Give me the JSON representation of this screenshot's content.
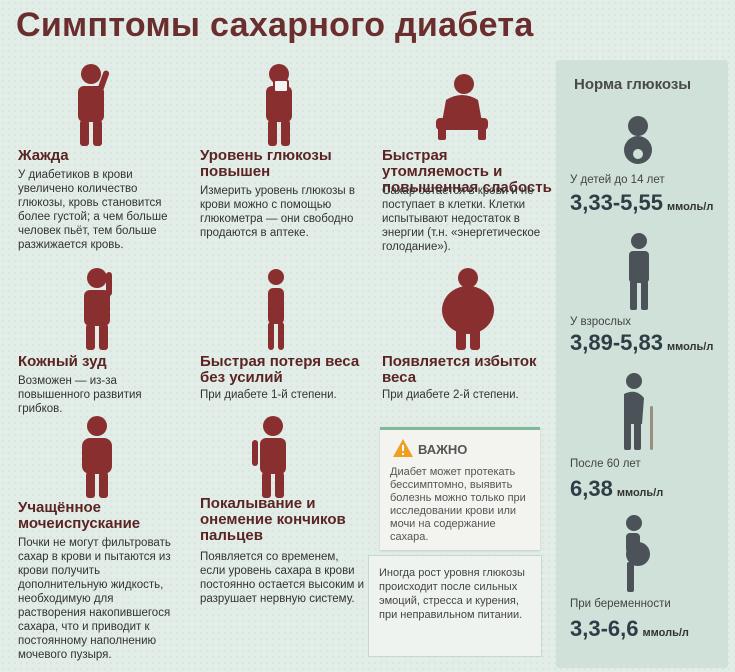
{
  "title": "Симптомы сахарного диабета",
  "symptoms": [
    {
      "title": "Жажда",
      "text": "У диабетиков в крови увеличено количество глюкозы, кровь становится более густой; а чем больше человек пьёт, тем больше разжижается кровь.",
      "icon": "person-drinking-icon"
    },
    {
      "title": "Уровень глюкозы повышен",
      "text": "Измерить уровень глюкозы в крови можно с помощью глюкометра — они свободно продаются в аптеке.",
      "icon": "person-glucometer-icon"
    },
    {
      "title": "Быстрая утомляемость и повышенная слабость",
      "text": "Сахар остается в крови и не поступает в клетки. Клетки испытывают недостаток в энергии (т.н. «энергетическое голодание»).",
      "icon": "tired-person-icon"
    },
    {
      "title": "Кожный зуд",
      "text": "Возможен — из-за повышенного развития грибков.",
      "icon": "person-scratching-icon"
    },
    {
      "title": "Быстрая потеря веса без усилий",
      "text": "При диабете 1-й степени.",
      "icon": "thin-person-icon"
    },
    {
      "title": "Появляется избыток веса",
      "text": "При диабете 2-й степени.",
      "icon": "overweight-person-icon"
    },
    {
      "title": "Учащённое мочеиспускание",
      "text": "Почки не могут фильтровать сахар в крови и пытаются из крови получить дополнительную жидкость, необходимую для растворения накопившегося сахара, что и приводит к постоянному наполнению мочевого пузыря.",
      "icon": "person-urination-icon"
    },
    {
      "title": "Покалывание и онемение кончиков пальцев",
      "text": "Появляется со временем, если уровень сахара в крови постоянно остается высоким и разрушает нервную систему.",
      "icon": "person-fingers-icon"
    }
  ],
  "warning": {
    "title": "ВАЖНО",
    "text": "Диабет может протекать бессимптомно, выявить болезнь можно только при исследовании крови или мочи на содержание сахара.",
    "icon": "warning-icon",
    "accent": "#f0a020"
  },
  "note": {
    "text": "Иногда рост уровня глюкозы происходит после сильных эмоций, стресса и курения, при неправильном питании."
  },
  "norms": {
    "title": "Норма глюкозы",
    "items": [
      {
        "label": "У детей до 14 лет",
        "value": "3,33-5,55",
        "unit": "ммоль/л",
        "icon": "baby-icon"
      },
      {
        "label": "У взрослых",
        "value": "3,89-5,83",
        "unit": "ммоль/л",
        "icon": "adult-icon"
      },
      {
        "label": "После 60 лет",
        "value": "6,38",
        "unit": "ммоль/л",
        "icon": "elderly-icon"
      },
      {
        "label": "При беременности",
        "value": "3,3-6,6",
        "unit": "ммоль/л",
        "icon": "pregnant-woman-icon"
      }
    ]
  },
  "colors": {
    "figure": "#8a2f2f",
    "title": "#6b2e2e",
    "panel": "#cfe1d8"
  }
}
